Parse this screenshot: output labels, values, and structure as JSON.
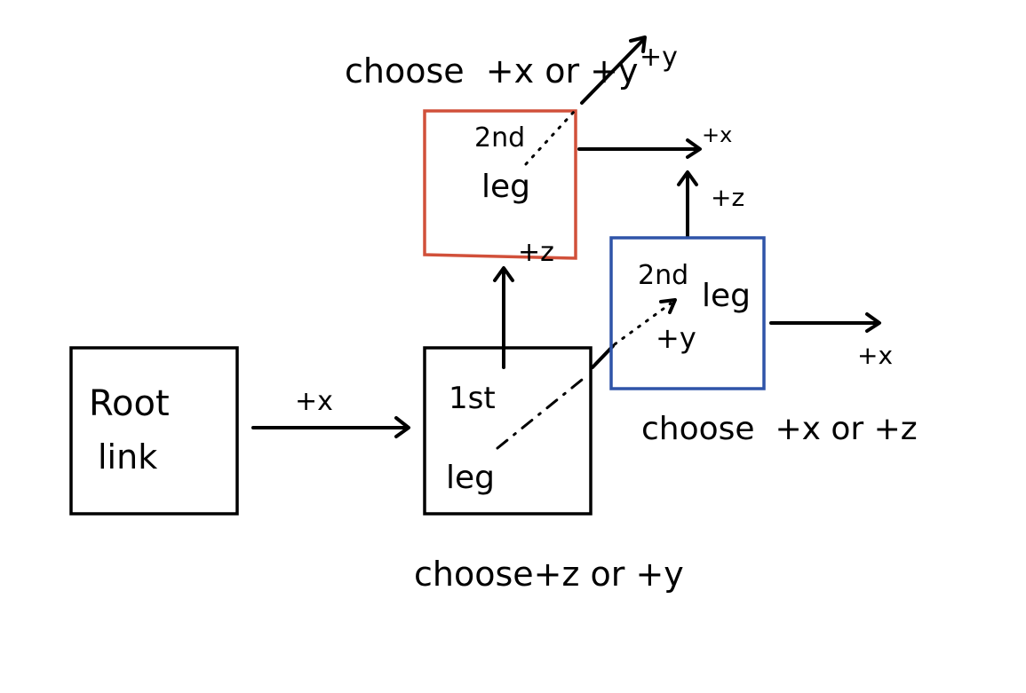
{
  "nodes": {
    "root": {
      "label_line1": "Root",
      "label_line2": "link",
      "border_color": "#000000"
    },
    "first_leg": {
      "label_line1": "1st",
      "label_line2": "leg",
      "border_color": "#000000"
    },
    "second_leg_red": {
      "label_line1": "2nd",
      "label_line2": "leg",
      "border_color": "#d1503a"
    },
    "second_leg_blue": {
      "label_line1": "2nd",
      "label_line2": "leg",
      "border_color": "#2f54a8"
    }
  },
  "edges": {
    "root_to_first": "+x",
    "first_to_red": "+z",
    "first_to_blue": "+y",
    "red_out_x": "+x",
    "red_out_y": "+y",
    "blue_out_x": "+x",
    "blue_out_z": "+z"
  },
  "notes": {
    "first_choice": "choose+z or +y",
    "red_choice": "choose  +x or +y",
    "blue_choice": "choose  +x or +z"
  }
}
